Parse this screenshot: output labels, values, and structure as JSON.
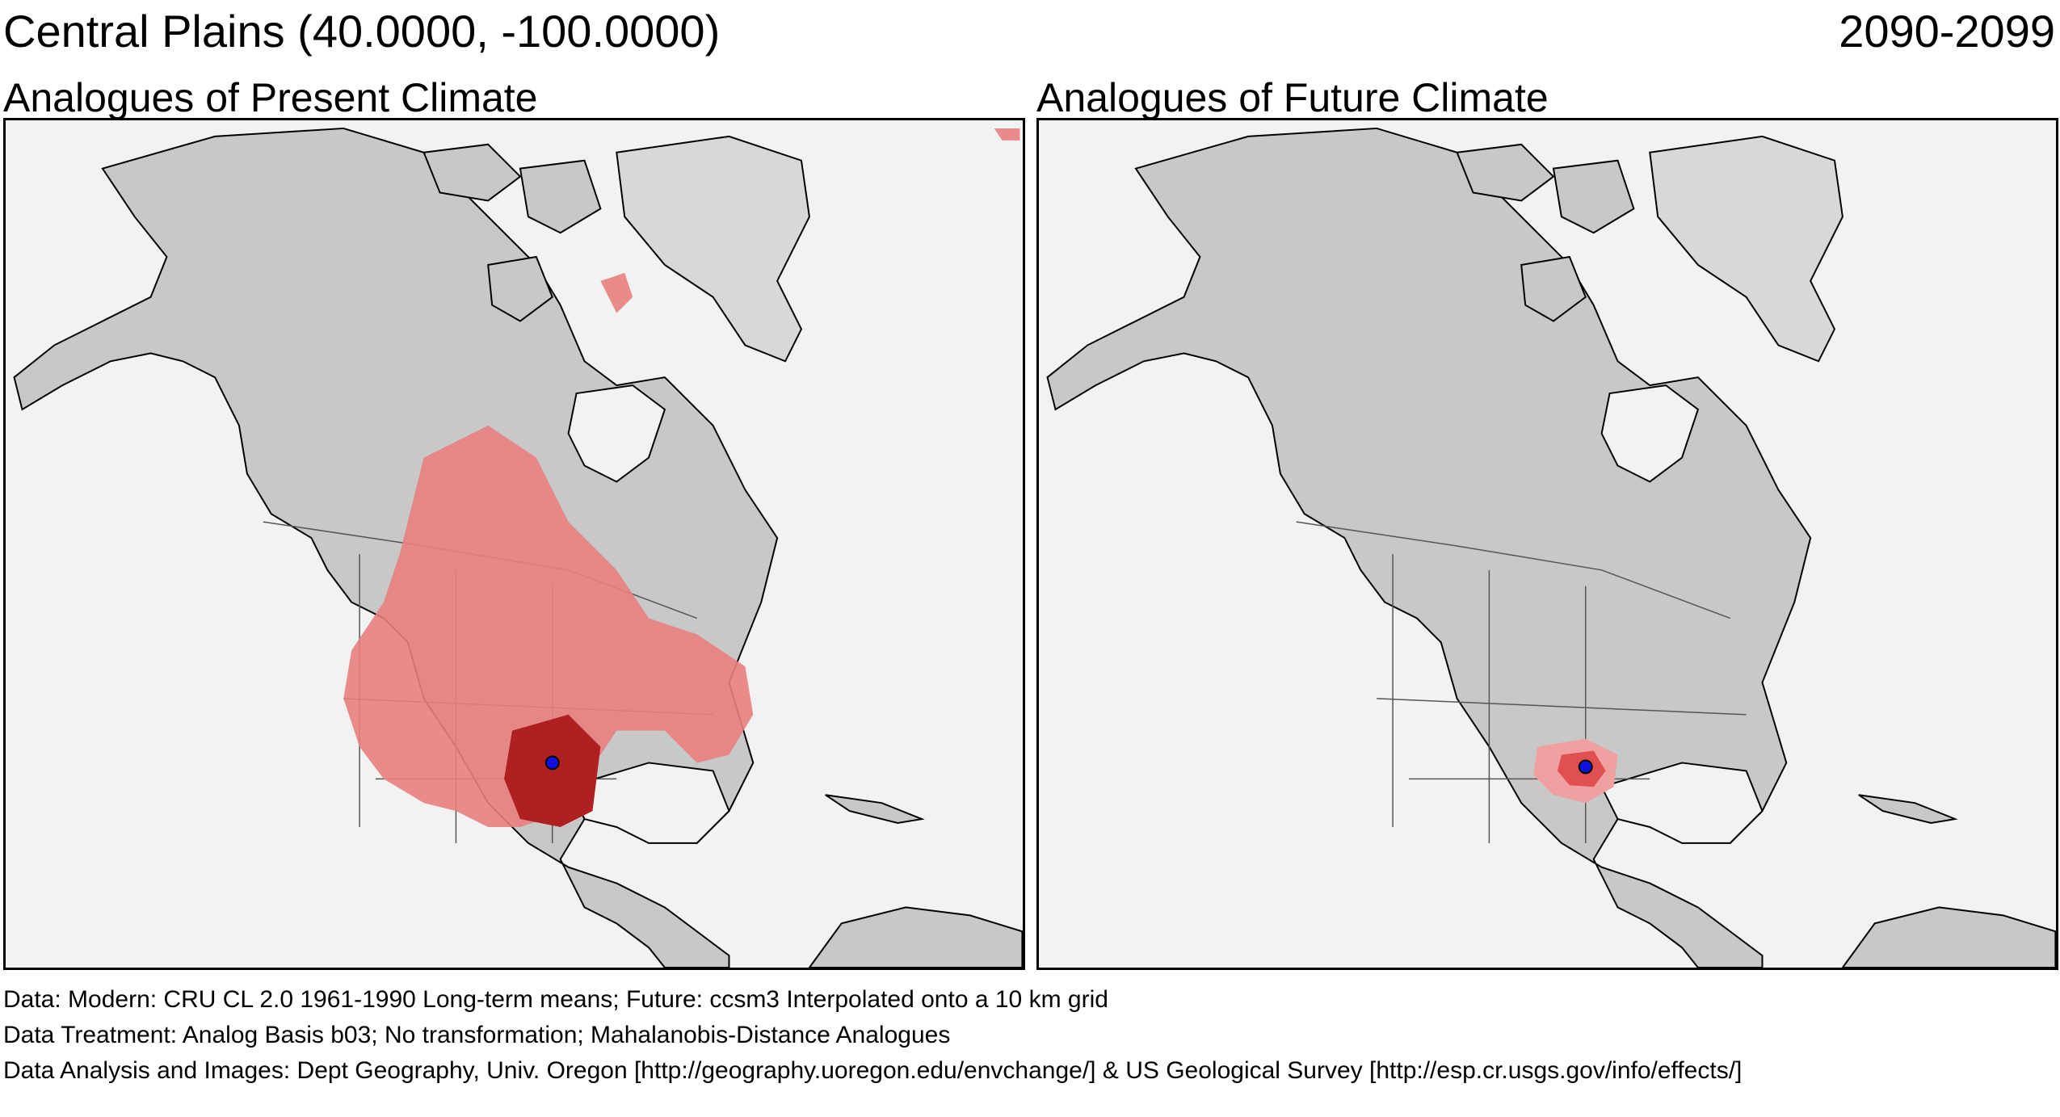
{
  "header": {
    "region": "Central Plains  (40.0000, -100.0000)",
    "period": "2090-2099"
  },
  "panels": {
    "present": {
      "title": "Analogues of Present Climate"
    },
    "future": {
      "title": "Analogues of Future Climate"
    }
  },
  "footer": {
    "line1": "Data:  Modern: CRU CL 2.0 1961-1990 Long-term means; Future: ccsm3 Interpolated onto a 10 km grid",
    "line2": "Data Treatment:  Analog Basis b03; No transformation; Mahalanobis-Distance Analogues",
    "line3": "Data Analysis and Images:  Dept Geography, Univ. Oregon [http://geography.uoregon.edu/envchange/] & US Geological Survey [http://esp.cr.usgs.gov/info/effects/]"
  },
  "colors": {
    "land": "#c8c8c8",
    "ocean": "#f2f2f2",
    "analog_weak": "#e88080",
    "analog_strong": "#b02020",
    "site_marker": "#1010e0"
  },
  "site": {
    "lat": 40.0,
    "lon": -100.0
  }
}
